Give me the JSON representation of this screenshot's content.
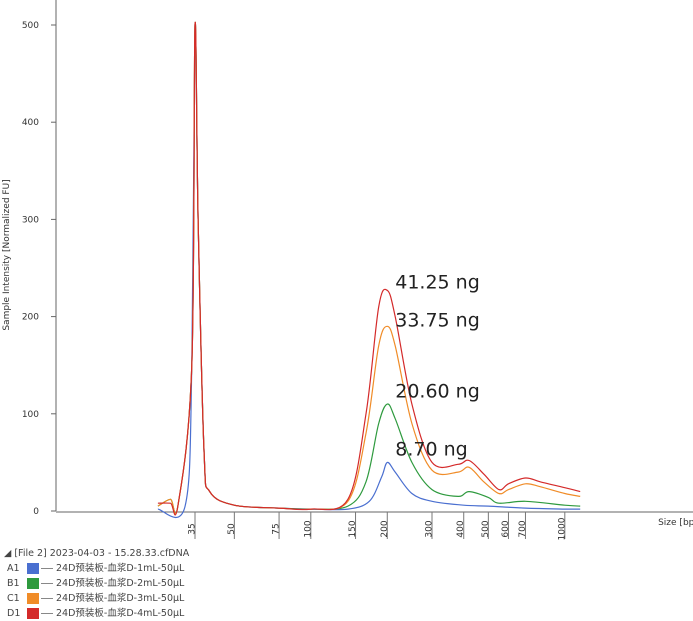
{
  "chart_data": {
    "type": "line",
    "title": "",
    "xlabel": "Size [bp]",
    "ylabel": "Sample Intensity [Normalized FU]",
    "ylim": [
      0,
      500
    ],
    "yticks": [
      "0",
      "100",
      "200",
      "300",
      "400",
      "500"
    ],
    "xticks": [
      "35",
      "50",
      "75",
      "100",
      "150",
      "200",
      "300",
      "400",
      "500",
      "600",
      "700",
      "1000"
    ],
    "x_scale": "log",
    "grid": false,
    "legend_position": "bottom-left",
    "series": [
      {
        "well": "A1",
        "name": "24D预装板-血浆D-1mL-50μL",
        "color": "#4a6fd0",
        "points": [
          [
            25,
            2
          ],
          [
            32,
            5
          ],
          [
            34,
            150
          ],
          [
            35,
            500
          ],
          [
            36,
            300
          ],
          [
            38,
            60
          ],
          [
            40,
            20
          ],
          [
            50,
            6
          ],
          [
            75,
            3
          ],
          [
            100,
            2
          ],
          [
            140,
            2
          ],
          [
            170,
            10
          ],
          [
            190,
            35
          ],
          [
            200,
            50
          ],
          [
            215,
            40
          ],
          [
            250,
            18
          ],
          [
            300,
            10
          ],
          [
            400,
            6
          ],
          [
            500,
            5
          ],
          [
            700,
            3
          ],
          [
            1000,
            2
          ],
          [
            1150,
            2
          ]
        ]
      },
      {
        "well": "B1",
        "name": "24D预装板-血浆D-2mL-50μL",
        "color": "#2e9a3e",
        "points": [
          [
            25,
            5
          ],
          [
            28,
            12
          ],
          [
            30,
            6
          ],
          [
            34,
            150
          ],
          [
            35,
            500
          ],
          [
            36,
            300
          ],
          [
            38,
            60
          ],
          [
            40,
            20
          ],
          [
            50,
            6
          ],
          [
            75,
            3
          ],
          [
            100,
            2
          ],
          [
            140,
            5
          ],
          [
            165,
            30
          ],
          [
            185,
            90
          ],
          [
            200,
            110
          ],
          [
            215,
            95
          ],
          [
            250,
            50
          ],
          [
            300,
            22
          ],
          [
            380,
            15
          ],
          [
            420,
            20
          ],
          [
            500,
            14
          ],
          [
            550,
            8
          ],
          [
            700,
            10
          ],
          [
            1000,
            6
          ],
          [
            1150,
            5
          ]
        ]
      },
      {
        "well": "C1",
        "name": "24D预装板-血浆D-3mL-50μL",
        "color": "#f08c28",
        "points": [
          [
            25,
            5
          ],
          [
            28,
            12
          ],
          [
            30,
            6
          ],
          [
            34,
            150
          ],
          [
            35,
            500
          ],
          [
            36,
            300
          ],
          [
            38,
            60
          ],
          [
            40,
            20
          ],
          [
            50,
            6
          ],
          [
            75,
            3
          ],
          [
            100,
            2
          ],
          [
            140,
            10
          ],
          [
            165,
            80
          ],
          [
            185,
            170
          ],
          [
            200,
            190
          ],
          [
            215,
            170
          ],
          [
            250,
            90
          ],
          [
            300,
            42
          ],
          [
            380,
            40
          ],
          [
            420,
            45
          ],
          [
            480,
            30
          ],
          [
            550,
            18
          ],
          [
            600,
            22
          ],
          [
            700,
            28
          ],
          [
            800,
            25
          ],
          [
            1000,
            18
          ],
          [
            1150,
            15
          ]
        ]
      },
      {
        "well": "D1",
        "name": "24D预装板-血浆D-4mL-50μL",
        "color": "#d42a2a",
        "points": [
          [
            25,
            8
          ],
          [
            28,
            8
          ],
          [
            30,
            6
          ],
          [
            34,
            150
          ],
          [
            35,
            500
          ],
          [
            36,
            300
          ],
          [
            38,
            60
          ],
          [
            40,
            20
          ],
          [
            50,
            6
          ],
          [
            75,
            3
          ],
          [
            100,
            2
          ],
          [
            140,
            12
          ],
          [
            165,
            100
          ],
          [
            185,
            210
          ],
          [
            200,
            227
          ],
          [
            215,
            200
          ],
          [
            250,
            110
          ],
          [
            300,
            50
          ],
          [
            380,
            48
          ],
          [
            420,
            52
          ],
          [
            480,
            38
          ],
          [
            550,
            22
          ],
          [
            600,
            28
          ],
          [
            700,
            34
          ],
          [
            800,
            30
          ],
          [
            1000,
            24
          ],
          [
            1150,
            20
          ]
        ]
      }
    ],
    "annotations": [
      {
        "text": "41.25 ng",
        "x": 215,
        "y": 229
      },
      {
        "text": "33.75 ng",
        "x": 215,
        "y": 190
      },
      {
        "text": "20.60 ng",
        "x": 215,
        "y": 117
      },
      {
        "text": "8.70 ng",
        "x": 215,
        "y": 57
      }
    ]
  },
  "legend": {
    "title": "[File 2] 2023-04-03 - 15.28.33.cfDNA"
  }
}
